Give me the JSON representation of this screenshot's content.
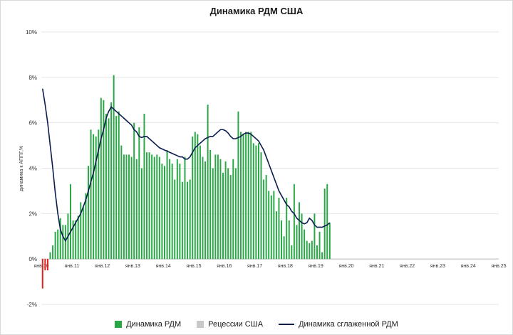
{
  "title": "Динамика РДМ США",
  "colors": {
    "bar": "#27a844",
    "bar_negative": "#e0201b",
    "recession": "#c8c8c8",
    "line": "#0b1d4f",
    "grid": "#e6e6e6"
  },
  "chart_data": {
    "type": "bar",
    "ylabel": "динамика к АППГ,%",
    "ylim": [
      -2,
      10
    ],
    "y_ticks": [
      "-2%",
      "0%",
      "2%",
      "4%",
      "6%",
      "8%",
      "10%"
    ],
    "x_ticks": [
      "янв.10",
      "янв.11",
      "янв.12",
      "янв.13",
      "янв.14",
      "янв.15",
      "янв.16",
      "янв.17",
      "янв.18",
      "янв.19",
      "янв.20",
      "янв.21",
      "янв.22",
      "янв.23",
      "янв.24",
      "янв.25"
    ],
    "x_start": "2010-01",
    "x_end": "2025-01",
    "grid": "horizontal",
    "legend_position": "bottom",
    "series": [
      {
        "name": "Динамика РДМ",
        "type": "bar",
        "values": [
          -1.3,
          -0.5,
          -0.5,
          0.3,
          0.6,
          1.2,
          1.3,
          1.8,
          1.5,
          1.5,
          2.0,
          3.3,
          1.7,
          1.7,
          1.9,
          2.5,
          2.3,
          2.9,
          4.1,
          5.7,
          5.5,
          5.4,
          5.7,
          7.1,
          7.0,
          6.4,
          6.2,
          6.9,
          8.1,
          6.3,
          6.5,
          5.0,
          4.6,
          4.6,
          4.6,
          4.5,
          6.0,
          4.4,
          5.8,
          4.0,
          6.4,
          4.7,
          4.7,
          4.6,
          4.5,
          4.6,
          4.5,
          4.2,
          4.1,
          4.8,
          4.4,
          4.2,
          3.5,
          4.4,
          4.2,
          3.4,
          4.5,
          3.4,
          3.5,
          5.4,
          5.6,
          5.5,
          5.0,
          4.5,
          4.3,
          6.8,
          4.8,
          4.0,
          4.6,
          4.6,
          4.4,
          3.8,
          4.3,
          4.0,
          3.7,
          4.4,
          4.0,
          6.5,
          5.6,
          5.5,
          5.6,
          5.6,
          5.6,
          5.1,
          5.0,
          5.1,
          4.7,
          3.5,
          3.7,
          3.0,
          2.8,
          3.0,
          2.1,
          2.7,
          1.7,
          1.0,
          2.7,
          1.7,
          0.6,
          3.3,
          1.5,
          2.5,
          2.0,
          1.3,
          0.8,
          0.7,
          0.8,
          2.0,
          0.6,
          1.2,
          0.3,
          3.1,
          3.3,
          1.6
        ]
      },
      {
        "name": "Рецессии США",
        "type": "area",
        "values": []
      },
      {
        "name": "Динамика сглаженной РДМ",
        "type": "line",
        "values": [
          7.5,
          6.8,
          6.0,
          5.0,
          4.0,
          2.9,
          2.0,
          1.3,
          1.0,
          0.8,
          1.0,
          1.2,
          1.4,
          1.6,
          1.8,
          2.0,
          2.3,
          2.6,
          3.0,
          3.4,
          3.8,
          4.3,
          4.8,
          5.3,
          5.7,
          6.2,
          6.5,
          6.7,
          6.6,
          6.5,
          6.4,
          6.3,
          6.2,
          6.1,
          6.0,
          5.9,
          5.7,
          5.6,
          5.4,
          5.35,
          5.4,
          5.4,
          5.3,
          5.2,
          5.1,
          5.0,
          4.9,
          4.85,
          4.8,
          4.75,
          4.7,
          4.65,
          4.6,
          4.55,
          4.5,
          4.5,
          4.4,
          4.4,
          4.5,
          4.7,
          4.9,
          5.0,
          5.1,
          5.2,
          5.3,
          5.35,
          5.4,
          5.4,
          5.5,
          5.6,
          5.7,
          5.7,
          5.65,
          5.55,
          5.4,
          5.3,
          5.3,
          5.35,
          5.4,
          5.5,
          5.55,
          5.55,
          5.5,
          5.4,
          5.3,
          5.2,
          5.0,
          4.8,
          4.5,
          4.2,
          3.9,
          3.6,
          3.3,
          3.0,
          2.8,
          2.6,
          2.4,
          2.3,
          2.1,
          2.0,
          1.8,
          1.7,
          1.6,
          1.55,
          1.6,
          1.8,
          1.7,
          1.5,
          1.4,
          1.4,
          1.4,
          1.45,
          1.5,
          1.6
        ]
      }
    ]
  }
}
